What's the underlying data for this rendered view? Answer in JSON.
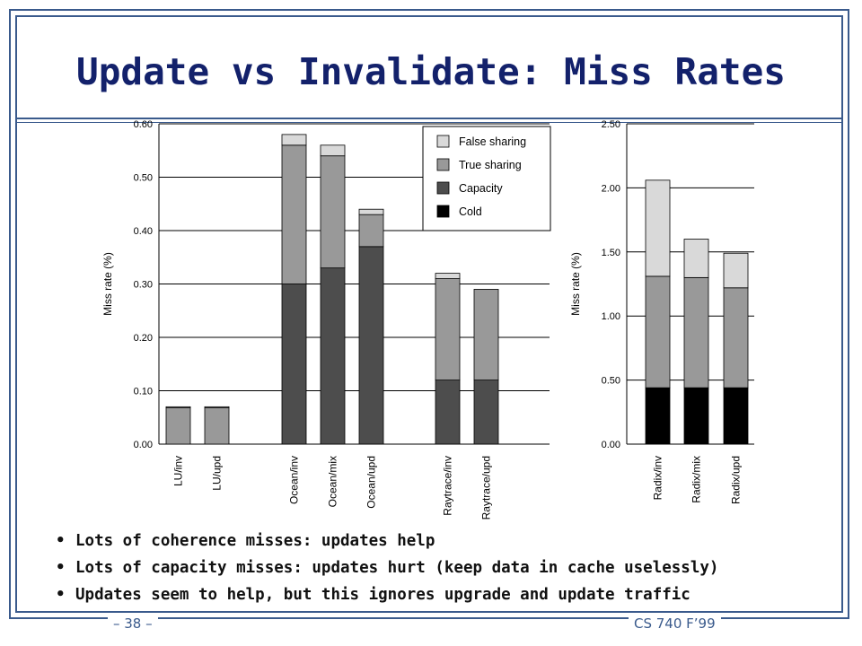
{
  "slide": {
    "title": "Update vs Invalidate: Miss Rates",
    "footer_left": "– 38 –",
    "footer_right": "CS 740 F’99"
  },
  "bullets": [
    "Lots of coherence misses: updates help",
    "Lots of capacity misses: updates hurt (keep data in cache uselessly)",
    "Updates seem to help, but this ignores upgrade and update traffic"
  ],
  "colors": {
    "frame": "#3a5a8c",
    "title": "#13216b",
    "Cold": "#000000",
    "Capacity": "#4d4d4d",
    "True sharing": "#999999",
    "False sharing": "#d9d9d9"
  },
  "chart_data": [
    {
      "type": "bar",
      "stacked": true,
      "ylabel": "Miss rate (%)",
      "ylim": [
        0,
        0.6
      ],
      "yticks": [
        "0.00",
        "0.10",
        "0.20",
        "0.30",
        "0.40",
        "0.50",
        "0.60"
      ],
      "grid": true,
      "legend": {
        "placement": "top-right",
        "entries": [
          "False sharing",
          "True sharing",
          "Capacity",
          "Cold"
        ]
      },
      "categories": [
        "LU/inv",
        "LU/upd",
        "Ocean/inv",
        "Ocean/mix",
        "Ocean/upd",
        "Raytrace/inv",
        "Raytrace/upd"
      ],
      "series": [
        {
          "name": "Cold",
          "values": [
            0.0,
            0.0,
            0.0,
            0.0,
            0.0,
            0.0,
            0.0
          ]
        },
        {
          "name": "Capacity",
          "values": [
            0.0,
            0.0,
            0.3,
            0.33,
            0.37,
            0.12,
            0.12
          ]
        },
        {
          "name": "True sharing",
          "values": [
            0.068,
            0.068,
            0.26,
            0.21,
            0.06,
            0.19,
            0.17
          ]
        },
        {
          "name": "False sharing",
          "values": [
            0.002,
            0.002,
            0.02,
            0.02,
            0.01,
            0.01,
            0.0
          ]
        }
      ]
    },
    {
      "type": "bar",
      "stacked": true,
      "ylabel": "Miss rate (%)",
      "ylim": [
        0,
        2.5
      ],
      "yticks": [
        "0.00",
        "0.50",
        "1.00",
        "1.50",
        "2.00",
        "2.50"
      ],
      "grid": true,
      "categories": [
        "Radix/inv",
        "Radix/mix",
        "Radix/upd"
      ],
      "series": [
        {
          "name": "Cold",
          "values": [
            0.44,
            0.44,
            0.44
          ]
        },
        {
          "name": "Capacity",
          "values": [
            0.0,
            0.0,
            0.0
          ]
        },
        {
          "name": "True sharing",
          "values": [
            0.87,
            0.86,
            0.78
          ]
        },
        {
          "name": "False sharing",
          "values": [
            0.75,
            0.3,
            0.27
          ]
        }
      ]
    }
  ]
}
